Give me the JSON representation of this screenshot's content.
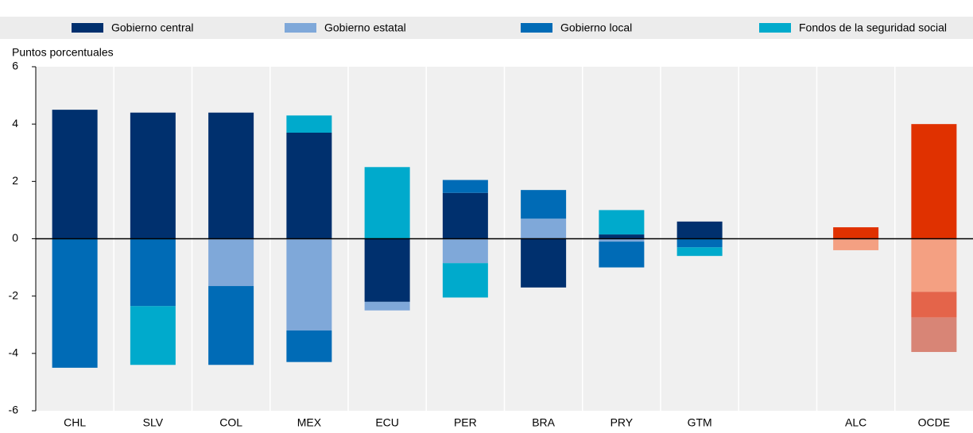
{
  "chart_data": {
    "type": "stacked_bar",
    "y_axis_label": "Puntos porcentuales",
    "categories": [
      "CHL",
      "SLV",
      "COL",
      "MEX",
      "ECU",
      "PER",
      "BRA",
      "PRY",
      "GTM",
      null,
      "ALC",
      "OCDE"
    ],
    "highlight_categories": [
      "ALC",
      "OCDE"
    ],
    "series": [
      {
        "name": "Gobierno central",
        "color": "#00306e",
        "highlight_color": "#e03100",
        "values": [
          4.5,
          4.4,
          4.4,
          3.7,
          -2.2,
          1.6,
          -1.7,
          0.15,
          0.6,
          null,
          0.4,
          4.0
        ]
      },
      {
        "name": "Gobierno estatal",
        "color": "#7fa8d9",
        "highlight_color": "#f4a082",
        "values": [
          0,
          0,
          -1.65,
          -3.2,
          -0.3,
          -0.85,
          0.7,
          -0.1,
          0,
          null,
          -0.4,
          -1.85
        ]
      },
      {
        "name": "Gobierno local",
        "color": "#006bb6",
        "highlight_color": "#e4644a",
        "values": [
          -4.5,
          -2.35,
          -2.75,
          -1.1,
          0,
          0.45,
          1.0,
          -0.9,
          -0.3,
          null,
          0,
          -0.9
        ]
      },
      {
        "name": "Fondos de la seguridad social",
        "color": "#00aacc",
        "highlight_color": "#d88576",
        "values": [
          0,
          -2.05,
          0,
          0.6,
          2.5,
          -1.2,
          0,
          0.85,
          -0.3,
          null,
          0,
          -1.2
        ]
      }
    ],
    "ylim": [
      -6,
      6
    ],
    "yticks": [
      -6,
      -4,
      -2,
      0,
      2,
      4,
      6
    ],
    "grid": true
  }
}
